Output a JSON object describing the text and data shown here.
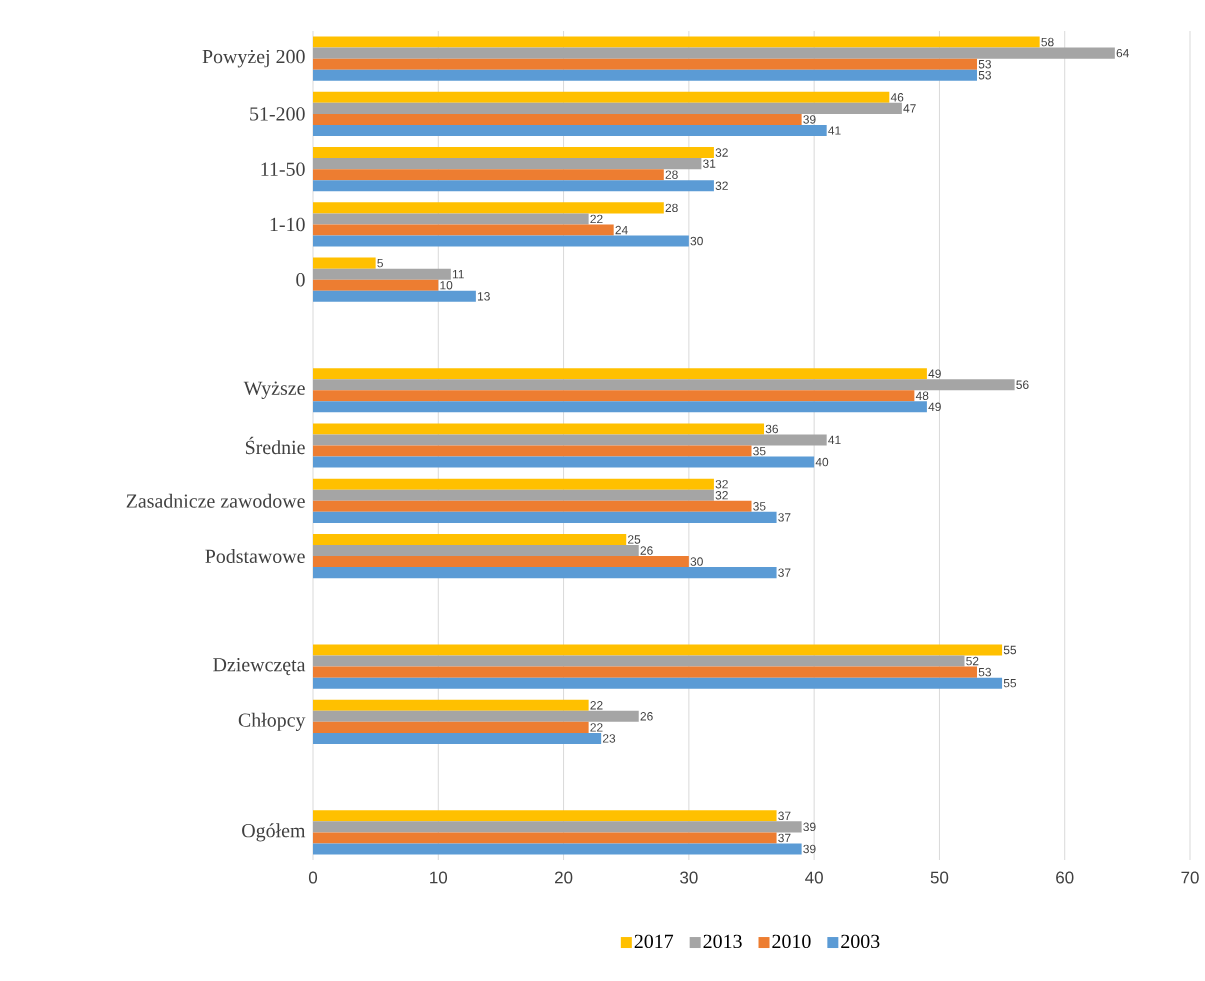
{
  "chart_data": {
    "type": "bar",
    "orientation": "horizontal",
    "categories": [
      "Powyżej 200",
      "51-200",
      "11-50",
      "1-10",
      "0",
      null,
      "Wyższe",
      "Średnie",
      "Zasadnicze zawodowe",
      "Podstawowe",
      null,
      "Dziewczęta",
      "Chłopcy",
      null,
      "Ogółem"
    ],
    "series": [
      {
        "name": "2017",
        "color": "#ffc000",
        "values": [
          58,
          46,
          32,
          28,
          5,
          null,
          49,
          36,
          32,
          25,
          null,
          55,
          22,
          null,
          37
        ]
      },
      {
        "name": "2013",
        "color": "#a5a5a5",
        "values": [
          64,
          47,
          31,
          22,
          11,
          null,
          56,
          41,
          32,
          26,
          null,
          52,
          26,
          null,
          39
        ]
      },
      {
        "name": "2010",
        "color": "#ed7d31",
        "values": [
          53,
          39,
          28,
          24,
          10,
          null,
          48,
          35,
          35,
          30,
          null,
          53,
          22,
          null,
          37
        ]
      },
      {
        "name": "2003",
        "color": "#5b9bd5",
        "values": [
          53,
          41,
          32,
          30,
          13,
          null,
          49,
          40,
          37,
          37,
          null,
          55,
          23,
          null,
          39
        ]
      }
    ],
    "xlim": [
      0,
      70
    ],
    "xticks": [
      0,
      10,
      20,
      30,
      40,
      50,
      60,
      70
    ],
    "grid": "x",
    "legend": "bottom",
    "data_labels": true
  }
}
